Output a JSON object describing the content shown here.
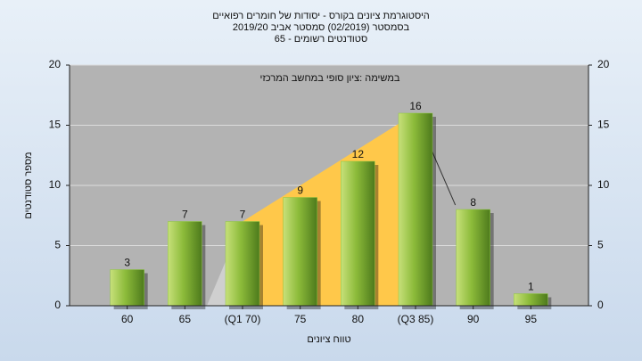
{
  "chart_data": {
    "type": "bar",
    "title": [
      "היסטוגרמת ציונים בקורס - יסודות של חומרים רפואיים",
      "בסמסטר  (02/2019)  סמסטר אביב 2019/20",
      "סטודנטים רשומים - 65"
    ],
    "annotation": "במשימה :ציון סופי במחשב המרכזי",
    "x_label": "טווח ציונים",
    "y_label": "מספר סטודנטים",
    "categories": [
      "60",
      "65",
      "(Q1 70)",
      "75",
      "80",
      "(Q3 85)",
      "90",
      "95"
    ],
    "values": [
      3,
      7,
      7,
      9,
      12,
      16,
      8,
      1
    ],
    "color": "#8cc63f",
    "ylim": [
      0,
      20
    ],
    "yticks": [
      0,
      5,
      10,
      15,
      20
    ],
    "y2lim": [
      0,
      20
    ],
    "y2ticks": [
      0,
      5,
      10,
      15,
      20
    ]
  }
}
